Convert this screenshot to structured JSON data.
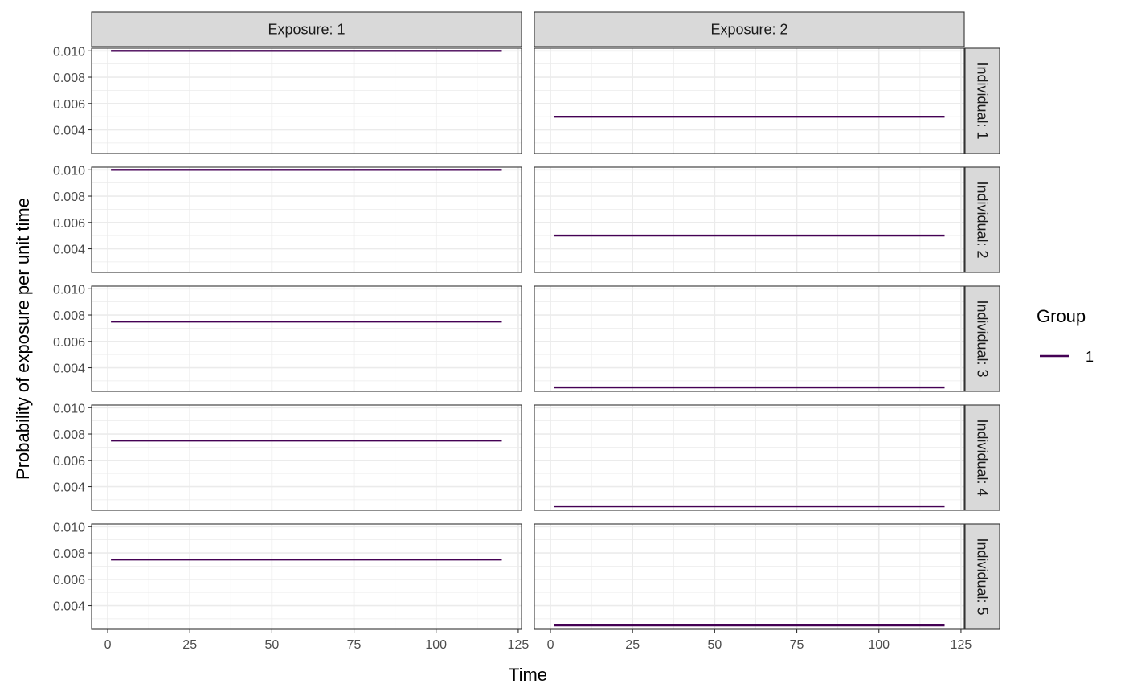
{
  "chart_data": {
    "type": "line",
    "facet_columns": [
      "Exposure: 1",
      "Exposure: 2"
    ],
    "facet_rows": [
      "Individual: 1",
      "Individual: 2",
      "Individual: 3",
      "Individual: 4",
      "Individual: 5"
    ],
    "xlabel": "Time",
    "ylabel": "Probability of exposure per unit time",
    "xlim": [
      -4.9,
      126
    ],
    "ylim": [
      0.0022,
      0.0102
    ],
    "x_ticks": [
      0,
      25,
      50,
      75,
      100,
      125
    ],
    "x_tick_labels": [
      "0",
      "25",
      "50",
      "75",
      "100",
      "125"
    ],
    "y_ticks": [
      0.004,
      0.006,
      0.008,
      0.01
    ],
    "y_tick_labels": [
      "0.004",
      "0.006",
      "0.008",
      "0.010"
    ],
    "grid": true,
    "legend": {
      "title": "Group",
      "placement": "right",
      "entries": [
        {
          "label": "1",
          "color": "#440154"
        }
      ]
    },
    "series_color": "#440154",
    "panels": [
      {
        "row": 0,
        "col": 0,
        "x": [
          1,
          120
        ],
        "y": [
          0.01,
          0.01
        ]
      },
      {
        "row": 0,
        "col": 1,
        "x": [
          1,
          120
        ],
        "y": [
          0.005,
          0.005
        ]
      },
      {
        "row": 1,
        "col": 0,
        "x": [
          1,
          120
        ],
        "y": [
          0.01,
          0.01
        ]
      },
      {
        "row": 1,
        "col": 1,
        "x": [
          1,
          120
        ],
        "y": [
          0.005,
          0.005
        ]
      },
      {
        "row": 2,
        "col": 0,
        "x": [
          1,
          120
        ],
        "y": [
          0.0075,
          0.0075
        ]
      },
      {
        "row": 2,
        "col": 1,
        "x": [
          1,
          120
        ],
        "y": [
          0.0025,
          0.0025
        ]
      },
      {
        "row": 3,
        "col": 0,
        "x": [
          1,
          120
        ],
        "y": [
          0.0075,
          0.0075
        ]
      },
      {
        "row": 3,
        "col": 1,
        "x": [
          1,
          120
        ],
        "y": [
          0.0025,
          0.0025
        ]
      },
      {
        "row": 4,
        "col": 0,
        "x": [
          1,
          120
        ],
        "y": [
          0.0075,
          0.0075
        ]
      },
      {
        "row": 4,
        "col": 1,
        "x": [
          1,
          120
        ],
        "y": [
          0.0025,
          0.0025
        ]
      }
    ]
  }
}
